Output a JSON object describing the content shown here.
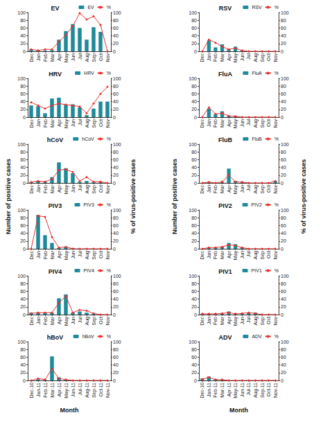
{
  "axis_titles": {
    "xlabel": "Month",
    "ylabel": "Number of positive cases",
    "y2label": "% of virus-positive cases"
  },
  "chart_data": [
    {
      "type": "bar",
      "title": "EV",
      "categories": [
        "Dec",
        "Jan",
        "Feb",
        "Mar",
        "Apr",
        "May",
        "Jun",
        "Jul",
        "Aug",
        "Sep",
        "Oct",
        "Nov"
      ],
      "series": [
        {
          "name": "EV",
          "type": "bar",
          "color": "#1f8a99",
          "values": [
            5,
            2,
            2,
            3,
            30,
            52,
            70,
            60,
            30,
            62,
            50,
            0
          ]
        },
        {
          "name": "%",
          "type": "line",
          "color": "#e8312f",
          "marker": "circle",
          "axis": "y2",
          "values": [
            5,
            2,
            5,
            5,
            25,
            42,
            65,
            98,
            82,
            90,
            68,
            0
          ]
        }
      ],
      "ylim": [
        0,
        100
      ],
      "yticks": [
        0,
        20,
        40,
        60,
        80,
        100
      ],
      "y2lim": [
        0,
        100
      ],
      "y2ticks": [
        0,
        20,
        40,
        60,
        80,
        100
      ],
      "legend": "upper right",
      "grid": false
    },
    {
      "type": "bar",
      "title": "HRV",
      "categories": [
        "Dec",
        "Jan",
        "Feb",
        "Mar",
        "Apr",
        "May",
        "Jun",
        "Jul",
        "Aug",
        "Sep",
        "Oct",
        "Nov"
      ],
      "series": [
        {
          "name": "HRV",
          "type": "bar",
          "color": "#1f8a99",
          "values": [
            30,
            28,
            10,
            48,
            50,
            32,
            33,
            25,
            5,
            22,
            40,
            40
          ]
        },
        {
          "name": "%",
          "type": "line",
          "color": "#e8312f",
          "marker": "circle",
          "axis": "y2",
          "values": [
            38,
            30,
            22,
            30,
            35,
            32,
            30,
            27,
            10,
            35,
            60,
            78
          ]
        }
      ],
      "ylim": [
        0,
        100
      ],
      "yticks": [
        0,
        20,
        40,
        60,
        80,
        100
      ],
      "y2lim": [
        0,
        100
      ],
      "y2ticks": [
        0,
        20,
        40,
        60,
        80,
        100
      ],
      "legend": "upper right",
      "grid": false
    },
    {
      "type": "bar",
      "title": "hCoV",
      "categories": [
        "Dec",
        "Jan",
        "Feb",
        "Mar",
        "Apr",
        "May",
        "Jun",
        "Jul",
        "Aug",
        "Sep",
        "Oct",
        "Nov"
      ],
      "series": [
        {
          "name": "hCoV",
          "type": "bar",
          "color": "#1f8a99",
          "values": [
            2,
            5,
            3,
            15,
            53,
            38,
            25,
            3,
            5,
            2,
            3,
            0
          ]
        },
        {
          "name": "%",
          "type": "line",
          "color": "#e8312f",
          "marker": "circle",
          "axis": "y2",
          "values": [
            2,
            5,
            3,
            10,
            33,
            35,
            28,
            5,
            15,
            3,
            3,
            0
          ]
        }
      ],
      "ylim": [
        0,
        100
      ],
      "yticks": [
        0,
        20,
        40,
        60,
        80,
        100
      ],
      "y2lim": [
        0,
        100
      ],
      "y2ticks": [
        0,
        20,
        40,
        60,
        80,
        100
      ],
      "legend": "upper right",
      "grid": false
    },
    {
      "type": "bar",
      "title": "PIV3",
      "categories": [
        "Dec",
        "Jan",
        "Feb",
        "Mar",
        "Apr",
        "May",
        "Jun",
        "Jul",
        "Aug",
        "Sep",
        "Oct",
        "Nov"
      ],
      "series": [
        {
          "name": "PIV3",
          "type": "bar",
          "color": "#1f8a99",
          "values": [
            0,
            87,
            35,
            15,
            2,
            5,
            2,
            0,
            0,
            0,
            0,
            0
          ]
        },
        {
          "name": "%",
          "type": "line",
          "color": "#e8312f",
          "marker": "circle",
          "axis": "y2",
          "values": [
            0,
            85,
            82,
            30,
            3,
            5,
            0,
            0,
            0,
            0,
            0,
            0
          ]
        }
      ],
      "ylim": [
        0,
        100
      ],
      "yticks": [
        0,
        20,
        40,
        60,
        80,
        100
      ],
      "y2lim": [
        0,
        100
      ],
      "y2ticks": [
        0,
        20,
        40,
        60,
        80,
        100
      ],
      "legend": "upper right",
      "grid": false
    },
    {
      "type": "bar",
      "title": "PIV4",
      "categories": [
        "Dec",
        "Jan",
        "Feb",
        "Mar",
        "Apr",
        "May",
        "Jun",
        "Jul",
        "Aug",
        "Sep",
        "Oct",
        "Nov"
      ],
      "series": [
        {
          "name": "PIV4",
          "type": "bar",
          "color": "#1f8a99",
          "values": [
            5,
            5,
            5,
            5,
            42,
            52,
            5,
            8,
            5,
            2,
            0,
            0
          ]
        },
        {
          "name": "%",
          "type": "line",
          "color": "#e8312f",
          "marker": "circle",
          "axis": "y2",
          "values": [
            3,
            5,
            5,
            5,
            30,
            48,
            5,
            12,
            10,
            3,
            0,
            0
          ]
        }
      ],
      "ylim": [
        0,
        100
      ],
      "yticks": [
        0,
        20,
        40,
        60,
        80,
        100
      ],
      "y2lim": [
        0,
        100
      ],
      "y2ticks": [
        0,
        20,
        40,
        60,
        80,
        100
      ],
      "legend": "upper right",
      "grid": false
    },
    {
      "type": "bar",
      "title": "hBoV",
      "categories": [
        "Dec-10",
        "Jan-11",
        "Feb-11",
        "Mar-11",
        "Apr-11",
        "May-11",
        "Jun-11",
        "Jul-11",
        "Aug-11",
        "Sep-11",
        "Oct-11",
        "Nov-11"
      ],
      "series": [
        {
          "name": "hBoV",
          "type": "bar",
          "color": "#1f8a99",
          "values": [
            0,
            3,
            2,
            62,
            8,
            2,
            0,
            0,
            0,
            0,
            0,
            0
          ]
        },
        {
          "name": "%",
          "type": "line",
          "color": "#e8312f",
          "marker": "circle",
          "axis": "y2",
          "values": [
            0,
            5,
            2,
            30,
            5,
            2,
            0,
            0,
            0,
            0,
            0,
            0
          ]
        }
      ],
      "ylim": [
        0,
        100
      ],
      "yticks": [
        0,
        20,
        40,
        60,
        80,
        100
      ],
      "y2lim": [
        0,
        100
      ],
      "y2ticks": [
        0,
        20,
        40,
        60,
        80,
        100
      ],
      "legend": "upper right",
      "grid": false
    },
    {
      "type": "bar",
      "title": "RSV",
      "categories": [
        "Dec",
        "Jan",
        "Feb",
        "Mar",
        "Apr",
        "May",
        "Jun",
        "Jul",
        "Aug",
        "Sep",
        "Oct",
        "Nov"
      ],
      "series": [
        {
          "name": "RSV",
          "type": "bar",
          "color": "#1f8a99",
          "values": [
            0,
            28,
            10,
            18,
            5,
            12,
            2,
            0,
            0,
            0,
            0,
            0
          ]
        },
        {
          "name": "%",
          "type": "line",
          "color": "#e8312f",
          "marker": "circle",
          "axis": "y2",
          "values": [
            0,
            30,
            22,
            12,
            5,
            8,
            2,
            0,
            0,
            0,
            0,
            0
          ]
        }
      ],
      "ylim": [
        0,
        100
      ],
      "yticks": [
        0,
        20,
        40,
        60,
        80,
        100
      ],
      "y2lim": [
        0,
        100
      ],
      "y2ticks": [
        0,
        20,
        40,
        60,
        80,
        100
      ],
      "legend": "upper right",
      "grid": false
    },
    {
      "type": "bar",
      "title": "FluA",
      "categories": [
        "Dec",
        "Jan",
        "Feb",
        "Mar",
        "Apr",
        "May",
        "Jun",
        "Jul",
        "Aug",
        "Sep",
        "Oct",
        "Nov"
      ],
      "series": [
        {
          "name": "FluA",
          "type": "bar",
          "color": "#1f8a99",
          "values": [
            0,
            22,
            8,
            15,
            3,
            3,
            0,
            0,
            0,
            0,
            0,
            0
          ]
        },
        {
          "name": "%",
          "type": "line",
          "color": "#e8312f",
          "marker": "circle",
          "axis": "y2",
          "values": [
            0,
            25,
            8,
            10,
            3,
            2,
            0,
            0,
            0,
            0,
            0,
            0
          ]
        }
      ],
      "ylim": [
        0,
        100
      ],
      "yticks": [
        0,
        20,
        40,
        60,
        80,
        100
      ],
      "y2lim": [
        0,
        100
      ],
      "y2ticks": [
        0,
        20,
        40,
        60,
        80,
        100
      ],
      "legend": "upper right",
      "grid": false
    },
    {
      "type": "bar",
      "title": "FluB",
      "categories": [
        "Dec",
        "Jan",
        "Feb",
        "Mar",
        "Apr",
        "May",
        "Jun",
        "Jul",
        "Aug",
        "Sep",
        "Oct",
        "Nov"
      ],
      "series": [
        {
          "name": "FluB",
          "type": "bar",
          "color": "#1f8a99",
          "values": [
            0,
            2,
            0,
            3,
            37,
            5,
            2,
            0,
            0,
            0,
            0,
            5
          ]
        },
        {
          "name": "%",
          "type": "line",
          "color": "#e8312f",
          "marker": "circle",
          "axis": "y2",
          "values": [
            0,
            2,
            0,
            3,
            20,
            3,
            2,
            0,
            0,
            0,
            0,
            5
          ]
        }
      ],
      "ylim": [
        0,
        100
      ],
      "yticks": [
        0,
        20,
        40,
        60,
        80,
        100
      ],
      "y2lim": [
        0,
        100
      ],
      "y2ticks": [
        0,
        20,
        40,
        60,
        80,
        100
      ],
      "legend": "upper right",
      "grid": false
    },
    {
      "type": "bar",
      "title": "PIV2",
      "categories": [
        "Dec",
        "Jan",
        "Feb",
        "Mar",
        "Apr",
        "May",
        "Jun",
        "Jul",
        "Aug",
        "Sep",
        "Oct",
        "Nov"
      ],
      "series": [
        {
          "name": "PIV2",
          "type": "bar",
          "color": "#1f8a99",
          "values": [
            0,
            2,
            3,
            5,
            15,
            12,
            3,
            0,
            0,
            0,
            0,
            0
          ]
        },
        {
          "name": "%",
          "type": "line",
          "color": "#e8312f",
          "marker": "circle",
          "axis": "y2",
          "values": [
            0,
            3,
            3,
            5,
            10,
            8,
            3,
            0,
            0,
            0,
            0,
            0
          ]
        }
      ],
      "ylim": [
        0,
        100
      ],
      "yticks": [
        0,
        20,
        40,
        60,
        80,
        100
      ],
      "y2lim": [
        0,
        100
      ],
      "y2ticks": [
        0,
        20,
        40,
        60,
        80,
        100
      ],
      "legend": "upper right",
      "grid": false
    },
    {
      "type": "bar",
      "title": "PIV1",
      "categories": [
        "Dec",
        "Jan",
        "Feb",
        "Mar",
        "Apr",
        "May",
        "Jun",
        "Jul",
        "Aug",
        "Sep",
        "Oct",
        "Nov"
      ],
      "series": [
        {
          "name": "PIV1",
          "type": "bar",
          "color": "#1f8a99",
          "values": [
            2,
            2,
            2,
            3,
            8,
            2,
            3,
            5,
            5,
            0,
            0,
            0
          ]
        },
        {
          "name": "%",
          "type": "line",
          "color": "#e8312f",
          "marker": "circle",
          "axis": "y2",
          "values": [
            2,
            2,
            2,
            3,
            5,
            2,
            3,
            5,
            3,
            0,
            0,
            0
          ]
        }
      ],
      "ylim": [
        0,
        100
      ],
      "yticks": [
        0,
        20,
        40,
        60,
        80,
        100
      ],
      "y2lim": [
        0,
        100
      ],
      "y2ticks": [
        0,
        20,
        40,
        60,
        80,
        100
      ],
      "legend": "upper right",
      "grid": false
    },
    {
      "type": "bar",
      "title": "ADV",
      "categories": [
        "Dec-10",
        "Jan-11",
        "Feb-11",
        "Mar-11",
        "Apr-11",
        "May-11",
        "Jun-11",
        "Jul-11",
        "Aug-11",
        "Sep-11",
        "Oct-11",
        "Nov-11"
      ],
      "series": [
        {
          "name": "ADV",
          "type": "bar",
          "color": "#1f8a99",
          "values": [
            5,
            10,
            3,
            2,
            0,
            0,
            0,
            0,
            0,
            0,
            0,
            0
          ]
        },
        {
          "name": "%",
          "type": "line",
          "color": "#e8312f",
          "marker": "circle",
          "axis": "y2",
          "values": [
            3,
            8,
            2,
            2,
            0,
            0,
            0,
            0,
            0,
            0,
            0,
            0
          ]
        }
      ],
      "ylim": [
        0,
        100
      ],
      "yticks": [
        0,
        20,
        40,
        60,
        80,
        100
      ],
      "y2lim": [
        0,
        100
      ],
      "y2ticks": [
        0,
        20,
        40,
        60,
        80,
        100
      ],
      "legend": "upper right",
      "grid": false
    }
  ]
}
